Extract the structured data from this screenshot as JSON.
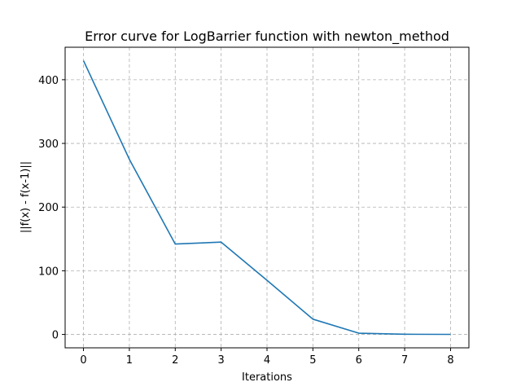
{
  "chart_data": {
    "type": "line",
    "title": "Error curve for LogBarrier function with newton_method",
    "xlabel": "Iterations",
    "ylabel": "||f(x) - f(x-1)||",
    "xlim": [
      -0.4,
      8.4
    ],
    "ylim": [
      -21,
      451
    ],
    "xticks": [
      0,
      1,
      2,
      3,
      4,
      5,
      6,
      7,
      8
    ],
    "yticks": [
      0,
      100,
      200,
      300,
      400
    ],
    "grid": true,
    "series": [
      {
        "color": "#1f77b4",
        "x": [
          0,
          1,
          2,
          3,
          4,
          5,
          6,
          7,
          8
        ],
        "y": [
          430,
          275,
          142,
          145,
          85,
          24,
          2,
          0.3,
          0.1
        ]
      }
    ]
  }
}
